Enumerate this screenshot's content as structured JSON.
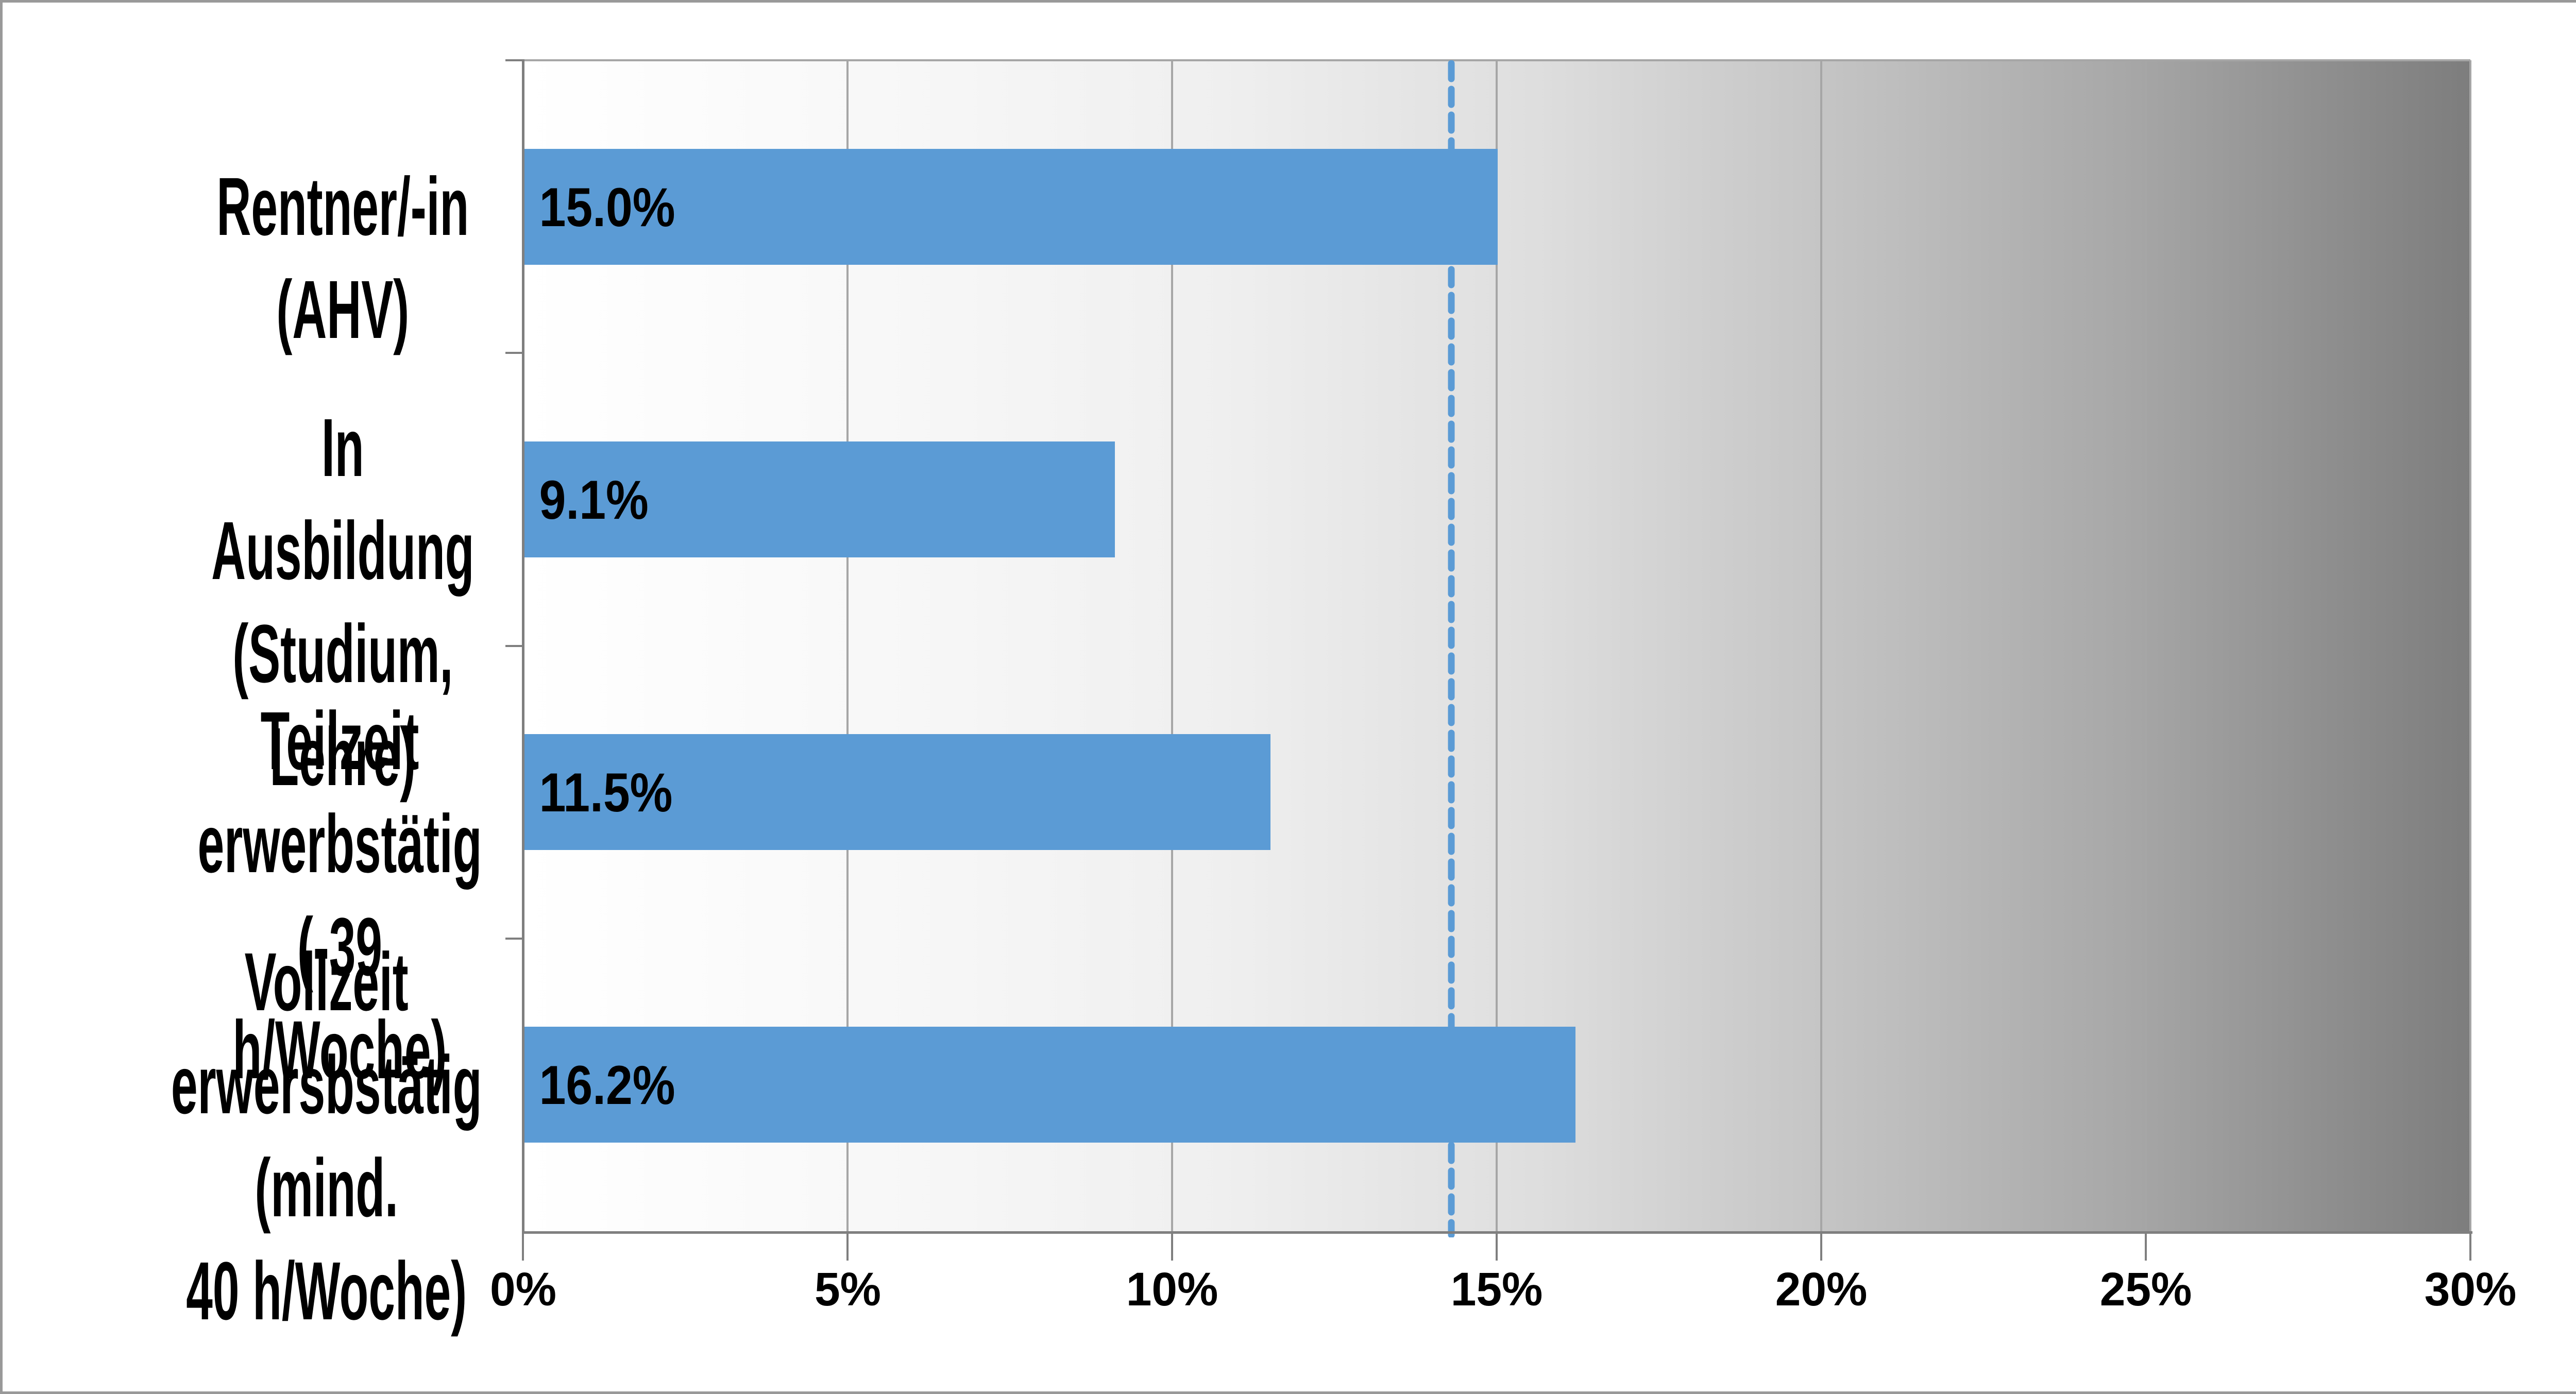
{
  "chart_data": {
    "type": "bar",
    "orientation": "horizontal",
    "title": "",
    "categories": [
      [
        "Rentner/-in (AHV)"
      ],
      [
        "In Ausbildung",
        "(Studium, Lehre)"
      ],
      [
        "Teilzeit erwerbstätig",
        "(-39 h/Woche)"
      ],
      [
        "Vollzeit",
        "erwersbstätig (mind.",
        "40 h/Woche)"
      ]
    ],
    "values": [
      15.0,
      9.1,
      11.5,
      16.2
    ],
    "value_labels": [
      "15.0%",
      "9.1%",
      "11.5%",
      "16.2%"
    ],
    "xlabel": "",
    "ylabel": "",
    "xlim": [
      0,
      30
    ],
    "x_tick_values": [
      0,
      5,
      10,
      15,
      20,
      25,
      30
    ],
    "x_tick_labels": [
      "0%",
      "5%",
      "10%",
      "15%",
      "20%",
      "25%",
      "30%"
    ],
    "reference_line_value": 14.3,
    "grid": "vertical-major",
    "legend": null,
    "colors": {
      "bar": "#5B9BD5",
      "reference_line": "#5B9BD5",
      "gridline": "#A6A6A6",
      "axis": "#7F7F7F",
      "label_text": "#000000",
      "plot_bg_left": "#FFFFFF",
      "plot_bg_right": "#7D7D7D"
    }
  }
}
